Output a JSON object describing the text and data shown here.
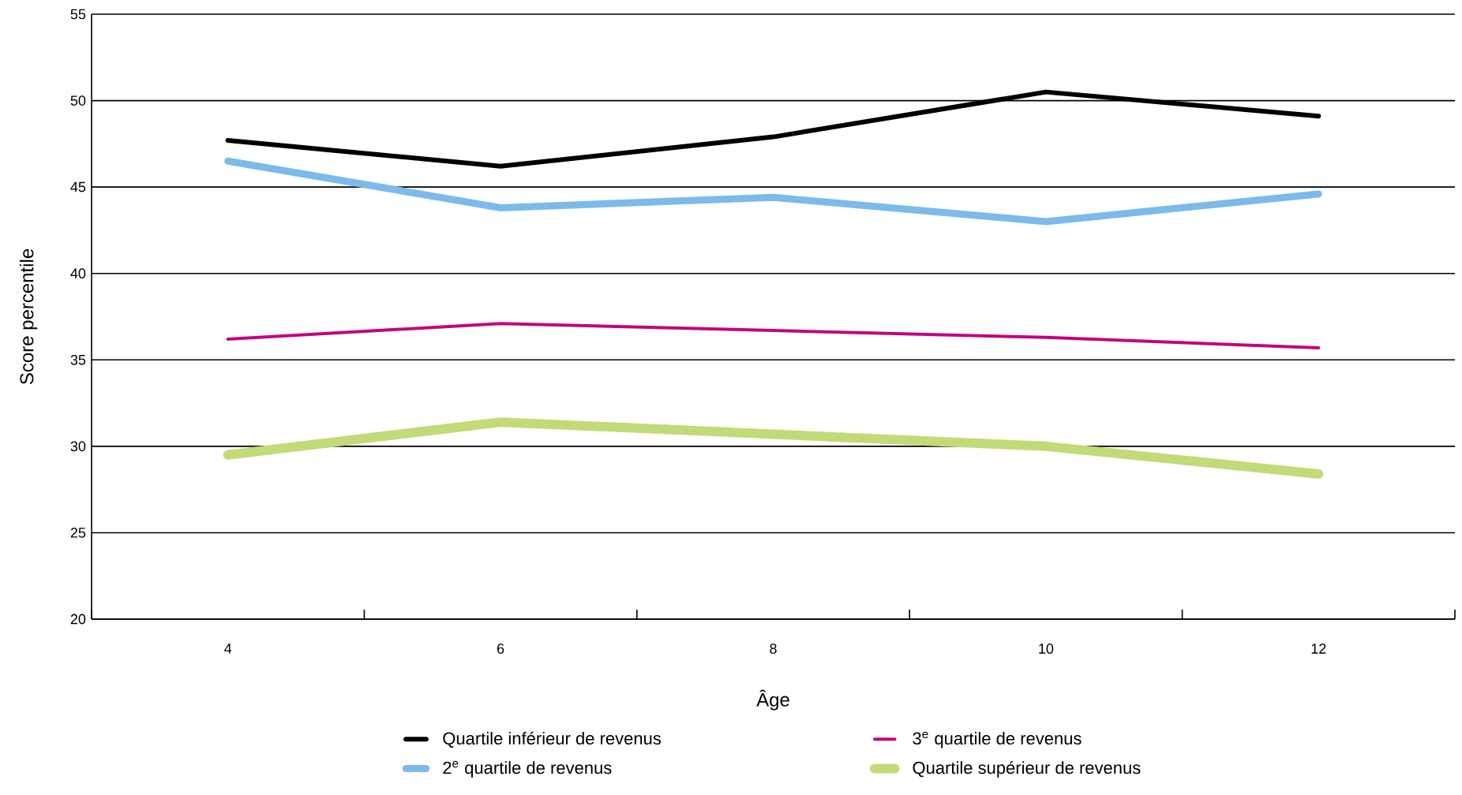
{
  "chart_data": {
    "type": "line",
    "xlabel": "Âge",
    "ylabel": "Score percentile",
    "categories": [
      "4",
      "6",
      "8",
      "10",
      "12"
    ],
    "series": [
      {
        "name": "Quartile inférieur de revenus",
        "color": "#000000",
        "values": [
          47.7,
          46.2,
          47.9,
          50.5,
          49.1
        ]
      },
      {
        "name": "2$^{e}$ quartile de revenus",
        "color": "#7bbbea",
        "values": [
          46.5,
          43.8,
          44.4,
          43.0,
          44.6
        ]
      },
      {
        "name": "3$^{e}$ quartile de revenus",
        "color": "#c0077f",
        "values": [
          36.2,
          37.1,
          36.7,
          36.3,
          35.7
        ]
      },
      {
        "name": "Quartile supérieur de revenus",
        "color": "#c3da79",
        "values": [
          29.5,
          31.4,
          30.7,
          30.0,
          28.4
        ]
      }
    ],
    "ylim": [
      20,
      55
    ],
    "yticks": [
      20,
      25,
      30,
      35,
      40,
      45,
      50,
      55
    ],
    "grid": "y",
    "legend": "bottom",
    "marker": "none",
    "line_style": "solid"
  }
}
